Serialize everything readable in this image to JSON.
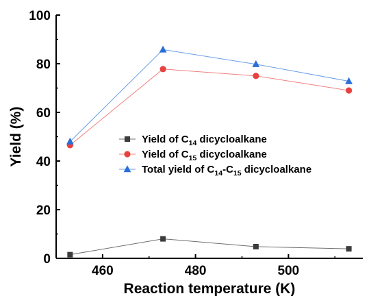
{
  "chart_data": {
    "type": "line",
    "xlabel": "Reaction temperature (K)",
    "ylabel": "Yield (%)",
    "xlim": [
      450,
      516
    ],
    "ylim": [
      0,
      100
    ],
    "x_ticks": [
      460,
      480,
      500
    ],
    "y_ticks": [
      0,
      20,
      40,
      60,
      80,
      100
    ],
    "grid": false,
    "legend_position": "center-right",
    "x": [
      453,
      473,
      493,
      513
    ],
    "series": [
      {
        "name": "Yield of C14 dicycloalkane",
        "legend_parts": [
          {
            "text": "Yield of C"
          },
          {
            "text": "14",
            "sub": true
          },
          {
            "text": " dicycloalkane"
          }
        ],
        "marker": "square",
        "color": "#3c3c3c",
        "line_color": "#6e6e6e",
        "values": [
          1.5,
          8.0,
          4.8,
          3.9
        ]
      },
      {
        "name": "Yield of C15 dicycloalkane",
        "legend_parts": [
          {
            "text": "Yield of C"
          },
          {
            "text": "15",
            "sub": true
          },
          {
            "text": " dicycloalkane"
          }
        ],
        "marker": "circle",
        "color": "#e8423f",
        "line_color": "#f08080",
        "values": [
          46.5,
          77.8,
          75.0,
          69.0
        ]
      },
      {
        "name": "Total yield of C14-C15 dicycloalkane",
        "legend_parts": [
          {
            "text": "Total yield of C"
          },
          {
            "text": "14",
            "sub": true
          },
          {
            "text": "-C"
          },
          {
            "text": "15",
            "sub": true
          },
          {
            "text": " dicycloalkane"
          }
        ],
        "marker": "triangle",
        "color": "#2a6fd6",
        "line_color": "#6a9ee8",
        "values": [
          48.0,
          85.8,
          79.8,
          72.8
        ]
      }
    ]
  }
}
